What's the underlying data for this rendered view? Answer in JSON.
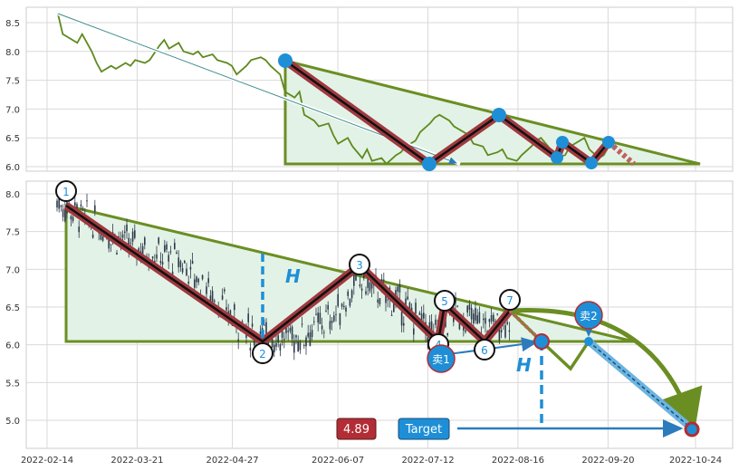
{
  "chart_data": [
    {
      "type": "line",
      "panel": "top",
      "ylim": [
        5.9,
        8.75
      ],
      "yticks": [
        6.0,
        6.5,
        7.0,
        7.5,
        8.0,
        8.5
      ],
      "grid": true,
      "series": [
        {
          "x": [
            "2022-02-14",
            "2022-02-16",
            "2022-02-18",
            "2022-02-22",
            "2022-02-24",
            "2022-02-28",
            "2022-03-02",
            "2022-03-04",
            "2022-03-08",
            "2022-03-10",
            "2022-03-14",
            "2022-03-16",
            "2022-03-18",
            "2022-03-22",
            "2022-03-24",
            "2022-03-28",
            "2022-03-30",
            "2022-04-01",
            "2022-04-05",
            "2022-04-07",
            "2022-04-11",
            "2022-04-13",
            "2022-04-15",
            "2022-04-19",
            "2022-04-21",
            "2022-04-25",
            "2022-04-27",
            "2022-04-29",
            "2022-05-03",
            "2022-05-05",
            "2022-05-09",
            "2022-05-11",
            "2022-05-13",
            "2022-05-17",
            "2022-05-19",
            "2022-05-23",
            "2022-05-25",
            "2022-05-27",
            "2022-05-31",
            "2022-06-02",
            "2022-06-06",
            "2022-06-08",
            "2022-06-10",
            "2022-06-14",
            "2022-06-16",
            "2022-06-20",
            "2022-06-22",
            "2022-06-24",
            "2022-06-28",
            "2022-06-30",
            "2022-07-04",
            "2022-07-06",
            "2022-07-08",
            "2022-07-12",
            "2022-07-14",
            "2022-07-18",
            "2022-07-20",
            "2022-07-22",
            "2022-07-26",
            "2022-07-28",
            "2022-08-01",
            "2022-08-03",
            "2022-08-05",
            "2022-08-09",
            "2022-08-11",
            "2022-08-15",
            "2022-08-17",
            "2022-08-19",
            "2022-08-23",
            "2022-08-25",
            "2022-08-29",
            "2022-08-31",
            "2022-09-02",
            "2022-09-06",
            "2022-09-08",
            "2022-09-12",
            "2022-09-14",
            "2022-09-16",
            "2022-09-20",
            "2022-09-22",
            "2022-09-26",
            "2022-09-28",
            "2022-09-30"
          ],
          "y": [
            8.65,
            8.3,
            8.25,
            8.15,
            8.3,
            8.0,
            7.8,
            7.65,
            7.75,
            7.7,
            7.8,
            7.75,
            7.85,
            7.8,
            7.85,
            8.1,
            8.2,
            8.05,
            8.15,
            8.0,
            7.95,
            8.0,
            7.9,
            7.95,
            7.85,
            7.8,
            7.75,
            7.6,
            7.75,
            7.85,
            7.9,
            7.85,
            7.75,
            7.6,
            7.3,
            7.2,
            7.3,
            6.9,
            6.8,
            6.7,
            6.75,
            6.55,
            6.4,
            6.5,
            6.35,
            6.15,
            6.3,
            6.1,
            6.15,
            6.05,
            6.2,
            6.25,
            6.35,
            6.45,
            6.6,
            6.75,
            6.85,
            6.9,
            6.8,
            6.7,
            6.6,
            6.55,
            6.4,
            6.35,
            6.2,
            6.25,
            6.3,
            6.15,
            6.1,
            6.2,
            6.35,
            6.45,
            6.5,
            6.3,
            6.15,
            6.2,
            6.35,
            6.4,
            6.5,
            6.3,
            6.15,
            6.2,
            6.35
          ]
        }
      ],
      "pattern_points": [
        {
          "x": "2022-05-14",
          "y": 7.85
        },
        {
          "x": "2022-07-31",
          "y": 6.05
        },
        {
          "x": "2022-08-22",
          "y": 6.9
        },
        {
          "x": "2022-09-08",
          "y": 6.15
        },
        {
          "x": "2022-09-10",
          "y": 6.42
        },
        {
          "x": "2022-09-24",
          "y": 6.07
        },
        {
          "x": "2022-09-31",
          "y": 6.44
        }
      ],
      "triangle": {
        "apex": "2022-05-14",
        "top": 7.85,
        "base": 6.0,
        "end": "2022-10-38"
      },
      "projection": {
        "from": "2022-09-31",
        "to": "2022-10-42",
        "y_from": 6.44,
        "y_to": 6.0
      },
      "arrow": {
        "from": "2022-02-13",
        "y_from": 8.7,
        "to": "2022-08-06",
        "y_to": 6.0
      }
    },
    {
      "type": "candlestick",
      "panel": "bottom",
      "ylim": [
        4.6,
        8.2
      ],
      "yticks": [
        5.0,
        5.5,
        6.0,
        6.5,
        7.0,
        7.5,
        8.0
      ],
      "xticks": [
        "2022-02-14",
        "2022-03-21",
        "2022-04-27",
        "2022-06-07",
        "2022-07-12",
        "2022-08-16",
        "2022-09-20",
        "2022-10-24"
      ],
      "grid": true,
      "pattern_points": [
        {
          "label": "1",
          "x": "2022-02-14",
          "y": 7.85
        },
        {
          "label": "2",
          "x": "2022-05-11",
          "y": 6.05
        },
        {
          "label": "3",
          "x": "2022-06-14",
          "y": 6.9
        },
        {
          "label": "4",
          "x": "2022-07-27",
          "y": 6.05
        },
        {
          "label": "5",
          "x": "2022-07-30",
          "y": 6.45
        },
        {
          "label": "6",
          "x": "2022-08-13",
          "y": 6.07
        },
        {
          "label": "7",
          "x": "2022-08-24",
          "y": 6.45
        }
      ],
      "triangle": {
        "apex": "2022-02-14",
        "top": 7.85,
        "base": 6.05,
        "end": "2022-09-31"
      },
      "height_label": "H",
      "sell_points": [
        {
          "label": "卖1",
          "x": "2022-08-29",
          "y": 6.05
        },
        {
          "label": "卖2",
          "x": "2022-09-19",
          "y": 6.1
        }
      ],
      "target_label": "Target",
      "target_value": "4.89",
      "target_y": 4.89
    }
  ],
  "colors": {
    "triangle_line": "#6b8e23",
    "triangle_fill": "#e3f2e6",
    "zigzag_outer": "#a0393f",
    "zigzag_inner": "#111111",
    "marker_blue": "#1e8fd6",
    "target_box": "#1e8fd6",
    "value_box": "#b22d35",
    "arrow_blue": "#2b7bbd",
    "price_line": "#5e8a1e"
  }
}
